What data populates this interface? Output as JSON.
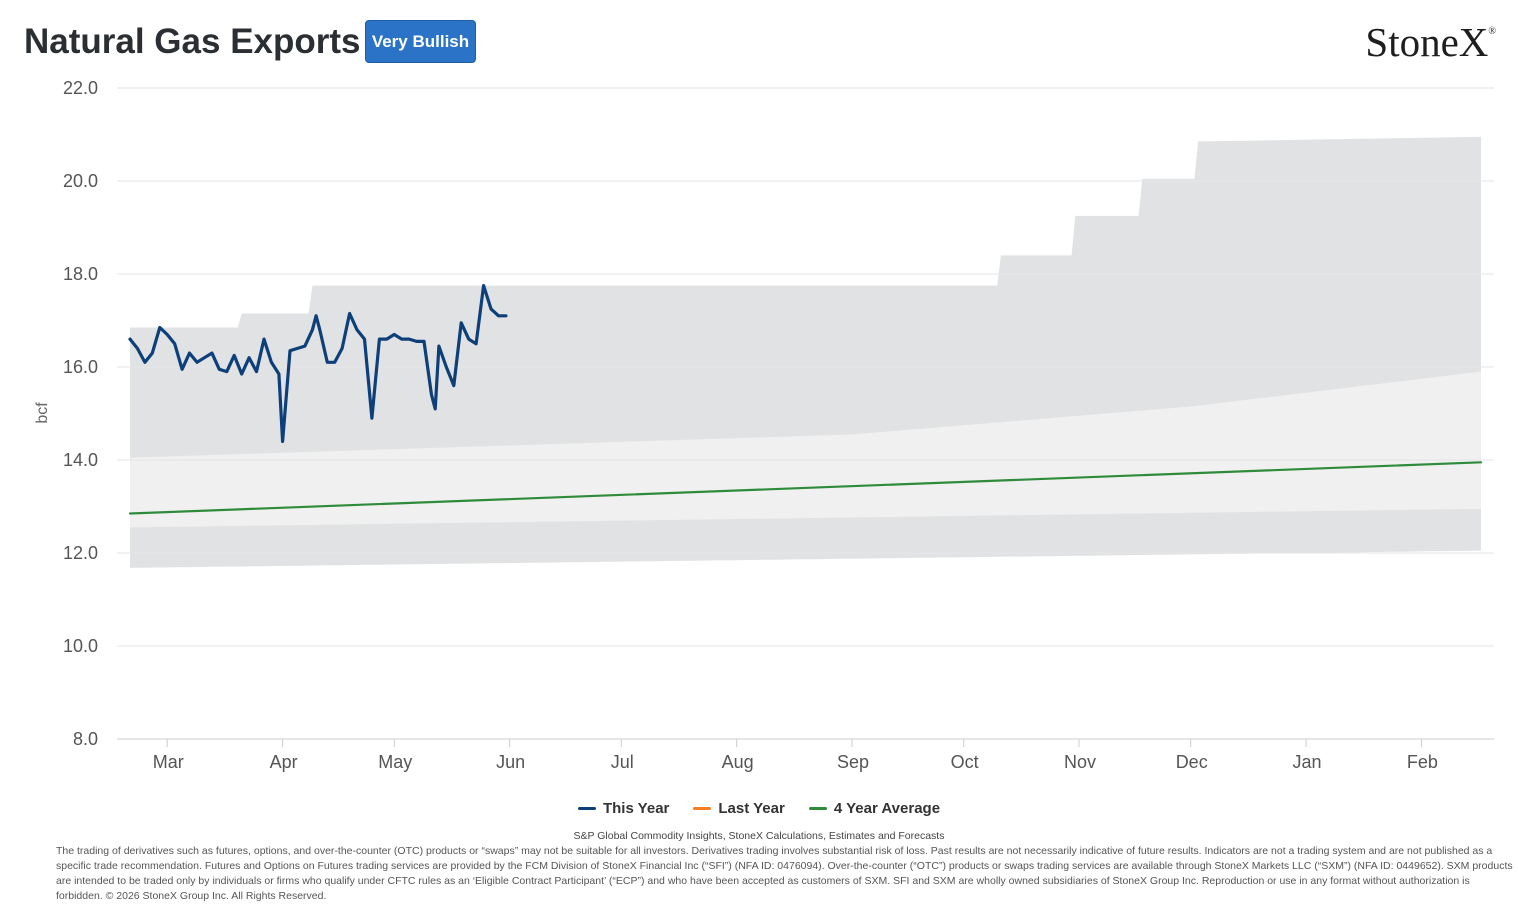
{
  "header": {
    "title": "Natural Gas Exports",
    "badge": "Very Bullish",
    "logo": "StoneX",
    "logo_mark": "®"
  },
  "colors": {
    "this_year": "#0d3f7a",
    "last_year": "#f57e20",
    "four_year_avg": "#2e8b3a",
    "band_outer": "#e1e2e3",
    "band_inner": "#f0f0f0",
    "band_center": "#f8f8f8",
    "badge": "#2a73c7"
  },
  "chart_data": {
    "type": "line",
    "ylabel": "bcf",
    "ylim": [
      8,
      22
    ],
    "yticks": [
      "8.0",
      "10.0",
      "12.0",
      "14.0",
      "16.0",
      "18.0",
      "20.0",
      "22.0"
    ],
    "x_range": [
      "2025-02-19",
      "2026-02-17"
    ],
    "month_ticks": [
      {
        "label": "Mar",
        "date": "2025-03-01"
      },
      {
        "label": "Apr",
        "date": "2025-04-01"
      },
      {
        "label": "May",
        "date": "2025-05-01"
      },
      {
        "label": "Jun",
        "date": "2025-06-01"
      },
      {
        "label": "Jul",
        "date": "2025-07-01"
      },
      {
        "label": "Aug",
        "date": "2025-08-01"
      },
      {
        "label": "Sep",
        "date": "2025-09-01"
      },
      {
        "label": "Oct",
        "date": "2025-10-01"
      },
      {
        "label": "Nov",
        "date": "2025-11-01"
      },
      {
        "label": "Dec",
        "date": "2025-12-01"
      },
      {
        "label": "Jan",
        "date": "2026-01-01"
      },
      {
        "label": "Feb",
        "date": "2026-02-01"
      }
    ],
    "range_bands": {
      "outer_max": [
        {
          "date": "2025-02-19",
          "value": 16.85
        },
        {
          "date": "2025-03-20",
          "value": 16.85
        },
        {
          "date": "2025-03-21",
          "value": 17.15
        },
        {
          "date": "2025-04-08",
          "value": 17.15
        },
        {
          "date": "2025-04-09",
          "value": 17.75
        },
        {
          "date": "2025-10-10",
          "value": 17.75
        },
        {
          "date": "2025-10-11",
          "value": 18.4
        },
        {
          "date": "2025-10-30",
          "value": 18.4
        },
        {
          "date": "2025-10-31",
          "value": 19.25
        },
        {
          "date": "2025-11-17",
          "value": 19.25
        },
        {
          "date": "2025-11-18",
          "value": 20.05
        },
        {
          "date": "2025-12-02",
          "value": 20.05
        },
        {
          "date": "2025-12-03",
          "value": 20.85
        },
        {
          "date": "2026-02-17",
          "value": 20.95
        }
      ],
      "outer_min": [
        {
          "date": "2025-02-19",
          "value": 11.68
        },
        {
          "date": "2026-02-17",
          "value": 12.05
        }
      ],
      "inner_max": [
        {
          "date": "2025-02-19",
          "value": 14.05
        },
        {
          "date": "2025-09-01",
          "value": 14.55
        },
        {
          "date": "2025-12-01",
          "value": 15.15
        },
        {
          "date": "2026-02-17",
          "value": 15.9
        }
      ],
      "inner_min": [
        {
          "date": "2025-02-19",
          "value": 12.55
        },
        {
          "date": "2026-02-17",
          "value": 12.95
        }
      ]
    },
    "series": [
      {
        "name": "This Year",
        "points": [
          [
            "2025-02-19",
            16.6
          ],
          [
            "2025-02-21",
            16.4
          ],
          [
            "2025-02-23",
            16.1
          ],
          [
            "2025-02-25",
            16.3
          ],
          [
            "2025-02-27",
            16.85
          ],
          [
            "2025-03-01",
            16.7
          ],
          [
            "2025-03-03",
            16.5
          ],
          [
            "2025-03-05",
            15.95
          ],
          [
            "2025-03-07",
            16.3
          ],
          [
            "2025-03-09",
            16.1
          ],
          [
            "2025-03-11",
            16.2
          ],
          [
            "2025-03-13",
            16.3
          ],
          [
            "2025-03-15",
            15.95
          ],
          [
            "2025-03-17",
            15.9
          ],
          [
            "2025-03-19",
            16.25
          ],
          [
            "2025-03-21",
            15.85
          ],
          [
            "2025-03-23",
            16.2
          ],
          [
            "2025-03-25",
            15.9
          ],
          [
            "2025-03-27",
            16.6
          ],
          [
            "2025-03-29",
            16.1
          ],
          [
            "2025-03-31",
            15.85
          ],
          [
            "2025-04-01",
            14.4
          ],
          [
            "2025-04-03",
            16.35
          ],
          [
            "2025-04-05",
            16.4
          ],
          [
            "2025-04-07",
            16.45
          ],
          [
            "2025-04-09",
            16.8
          ],
          [
            "2025-04-11",
            16.8
          ],
          [
            "2025-04-13",
            16.1
          ],
          [
            "2025-04-15",
            16.1
          ],
          [
            "2025-04-17",
            16.4
          ],
          [
            "2025-04-19",
            17.15
          ],
          [
            "2025-04-21",
            16.8
          ],
          [
            "2025-04-23",
            16.6
          ],
          [
            "2025-04-25",
            14.9
          ],
          [
            "2025-04-27",
            16.6
          ],
          [
            "2025-04-29",
            16.6
          ],
          [
            "2025-05-01",
            16.7
          ],
          [
            "2025-05-03",
            16.6
          ],
          [
            "2025-05-05",
            16.6
          ],
          [
            "2025-05-07",
            16.55
          ],
          [
            "2025-05-09",
            16.55
          ],
          [
            "2025-05-11",
            15.4
          ],
          [
            "2025-05-12",
            15.1
          ],
          [
            "2025-05-13",
            16.45
          ],
          [
            "2025-05-15",
            16.0
          ],
          [
            "2025-05-17",
            15.6
          ],
          [
            "2025-05-19",
            16.95
          ],
          [
            "2025-05-21",
            16.6
          ],
          [
            "2025-05-23",
            16.5
          ],
          [
            "2025-05-25",
            17.75
          ],
          [
            "2025-05-27",
            17.25
          ],
          [
            "2025-05-29",
            17.1
          ],
          [
            "2025-05-31",
            17.1
          ],
          [
            "2025-04-10",
            17.1
          ]
        ],
        "notes": ""
      },
      {
        "name": "Last Year",
        "points": []
      },
      {
        "name": "4 Year Average",
        "points": [
          [
            "2025-02-19",
            12.85
          ],
          [
            "2026-02-17",
            13.95
          ]
        ]
      }
    ]
  },
  "legend": [
    {
      "label": "This Year",
      "color_key": "this_year"
    },
    {
      "label": "Last Year",
      "color_key": "last_year"
    },
    {
      "label": "4 Year Average",
      "color_key": "four_year_avg"
    }
  ],
  "footer": {
    "source": "S&P Global Commodity Insights, StoneX Calculations, Estimates and Forecasts",
    "disclaimer": "The trading of derivatives such as futures, options, and over-the-counter (OTC) products or “swaps” may not be suitable for all investors. Derivatives trading involves substantial risk of loss. Past results are not necessarily indicative of future results. Indicators are not a trading system and are not published as a specific trade recommendation. Futures and Options on Futures trading services are provided by the FCM Division of StoneX Financial Inc (“SFI”) (NFA ID: 0476094). Over-the-counter (“OTC”) products or swaps trading services are available through StoneX Markets LLC (“SXM”) (NFA ID: 0449652). SXM products are intended to be traded only by individuals or firms who qualify under CFTC rules as an ‘Eligible Contract Participant’ (“ECP”) and who have been accepted as customers of SXM. SFI and SXM are wholly owned subsidiaries of StoneX Group Inc. Reproduction or use in any format without authorization is forbidden. © 2026 StoneX Group Inc. All Rights Reserved."
  }
}
